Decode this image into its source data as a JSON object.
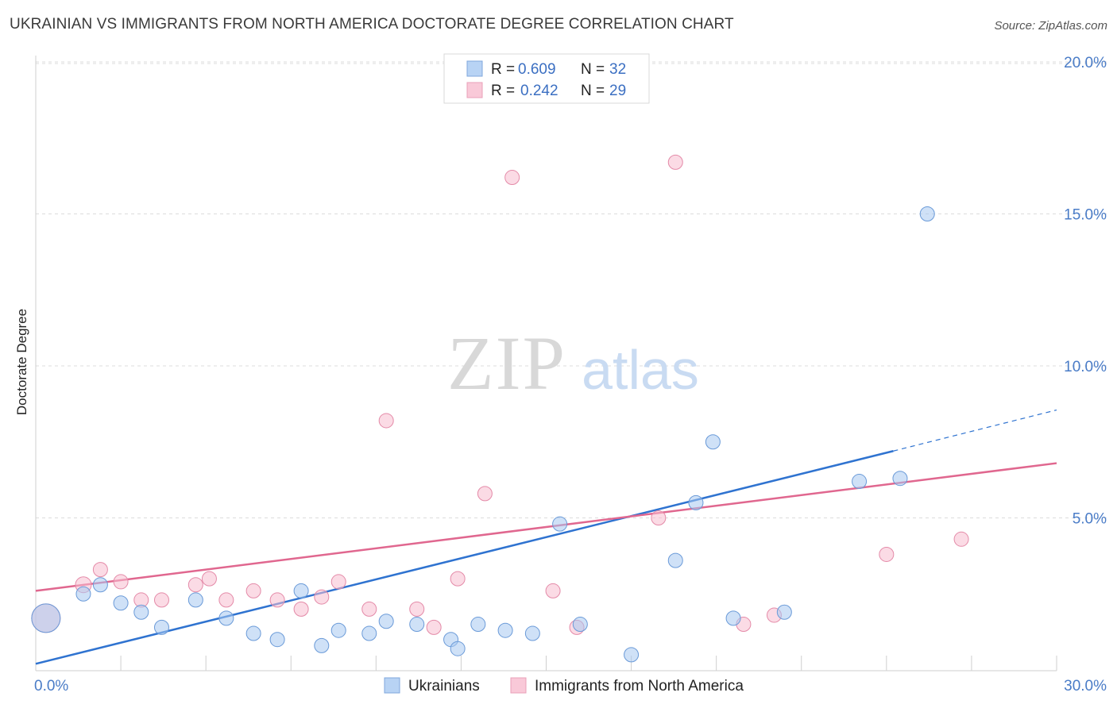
{
  "title": "UKRAINIAN VS IMMIGRANTS FROM NORTH AMERICA DOCTORATE DEGREE CORRELATION CHART",
  "source": "Source: ZipAtlas.com",
  "watermark": {
    "zip": "ZIP",
    "atlas": "atlas"
  },
  "chart_data": {
    "type": "scatter",
    "ylabel": "Doctorate Degree",
    "xlim": [
      0,
      30
    ],
    "ylim": [
      0,
      20.5
    ],
    "x_ticks": [
      {
        "value": 0,
        "label": "0.0%"
      },
      {
        "value": 30,
        "label": "30.0%"
      }
    ],
    "y_ticks": [
      {
        "value": 5,
        "label": "5.0%"
      },
      {
        "value": 10,
        "label": "10.0%"
      },
      {
        "value": 15,
        "label": "15.0%"
      },
      {
        "value": 20,
        "label": "20.0%"
      }
    ],
    "legend_stats": [
      {
        "r_label": "R =",
        "r_value": "0.609",
        "n_label": "N =",
        "n_value": "32"
      },
      {
        "r_label": "R =",
        "r_value": "0.242",
        "n_label": "N =",
        "n_value": "29"
      }
    ],
    "series": [
      {
        "name": "Ukrainians",
        "color": "#a8c8f0",
        "stroke": "#6a9ad8",
        "line_color": "#2f73d0",
        "trend": {
          "x0": 0,
          "y0": 0.2,
          "x1": 25.2,
          "y1": 7.2,
          "dash_to_x": 30,
          "dash_to_y": 8.55
        },
        "points": [
          [
            0.3,
            1.7,
            18
          ],
          [
            1.4,
            2.5,
            9
          ],
          [
            1.9,
            2.8,
            9
          ],
          [
            2.5,
            2.2,
            9
          ],
          [
            3.1,
            1.9,
            9
          ],
          [
            3.7,
            1.4,
            9
          ],
          [
            4.7,
            2.3,
            9
          ],
          [
            5.6,
            1.7,
            9
          ],
          [
            6.4,
            1.2,
            9
          ],
          [
            7.1,
            1.0,
            9
          ],
          [
            7.8,
            2.6,
            9
          ],
          [
            8.4,
            0.8,
            9
          ],
          [
            8.9,
            1.3,
            9
          ],
          [
            9.8,
            1.2,
            9
          ],
          [
            10.3,
            1.6,
            9
          ],
          [
            11.2,
            1.5,
            9
          ],
          [
            12.2,
            1.0,
            9
          ],
          [
            12.4,
            0.7,
            9
          ],
          [
            13.0,
            1.5,
            9
          ],
          [
            13.8,
            1.3,
            9
          ],
          [
            14.6,
            1.2,
            9
          ],
          [
            15.4,
            4.8,
            9
          ],
          [
            16.0,
            1.5,
            9
          ],
          [
            17.5,
            0.5,
            9
          ],
          [
            18.8,
            3.6,
            9
          ],
          [
            19.4,
            5.5,
            9
          ],
          [
            19.9,
            7.5,
            9
          ],
          [
            20.5,
            1.7,
            9
          ],
          [
            22.0,
            1.9,
            9
          ],
          [
            24.2,
            6.2,
            9
          ],
          [
            25.4,
            6.3,
            9
          ],
          [
            26.2,
            15.0,
            9
          ]
        ]
      },
      {
        "name": "Immigrants from North America",
        "color": "#f7bdd0",
        "stroke": "#e48aa8",
        "line_color": "#e0678f",
        "trend": {
          "x0": 0,
          "y0": 2.6,
          "x1": 30,
          "y1": 6.8
        },
        "points": [
          [
            0.3,
            1.7,
            18
          ],
          [
            1.4,
            2.8,
            10
          ],
          [
            1.9,
            3.3,
            9
          ],
          [
            2.5,
            2.9,
            9
          ],
          [
            3.1,
            2.3,
            9
          ],
          [
            3.7,
            2.3,
            9
          ],
          [
            4.7,
            2.8,
            9
          ],
          [
            5.1,
            3.0,
            9
          ],
          [
            5.6,
            2.3,
            9
          ],
          [
            6.4,
            2.6,
            9
          ],
          [
            7.1,
            2.3,
            9
          ],
          [
            7.8,
            2.0,
            9
          ],
          [
            8.4,
            2.4,
            9
          ],
          [
            8.9,
            2.9,
            9
          ],
          [
            9.8,
            2.0,
            9
          ],
          [
            10.3,
            8.2,
            9
          ],
          [
            11.2,
            2.0,
            9
          ],
          [
            11.7,
            1.4,
            9
          ],
          [
            12.4,
            3.0,
            9
          ],
          [
            13.2,
            5.8,
            9
          ],
          [
            14.0,
            16.2,
            9
          ],
          [
            15.2,
            2.6,
            9
          ],
          [
            15.9,
            1.4,
            9
          ],
          [
            18.3,
            5.0,
            9
          ],
          [
            18.8,
            16.7,
            9
          ],
          [
            20.8,
            1.5,
            9
          ],
          [
            21.7,
            1.8,
            9
          ],
          [
            25.0,
            3.8,
            9
          ],
          [
            27.2,
            4.3,
            9
          ]
        ]
      }
    ]
  }
}
